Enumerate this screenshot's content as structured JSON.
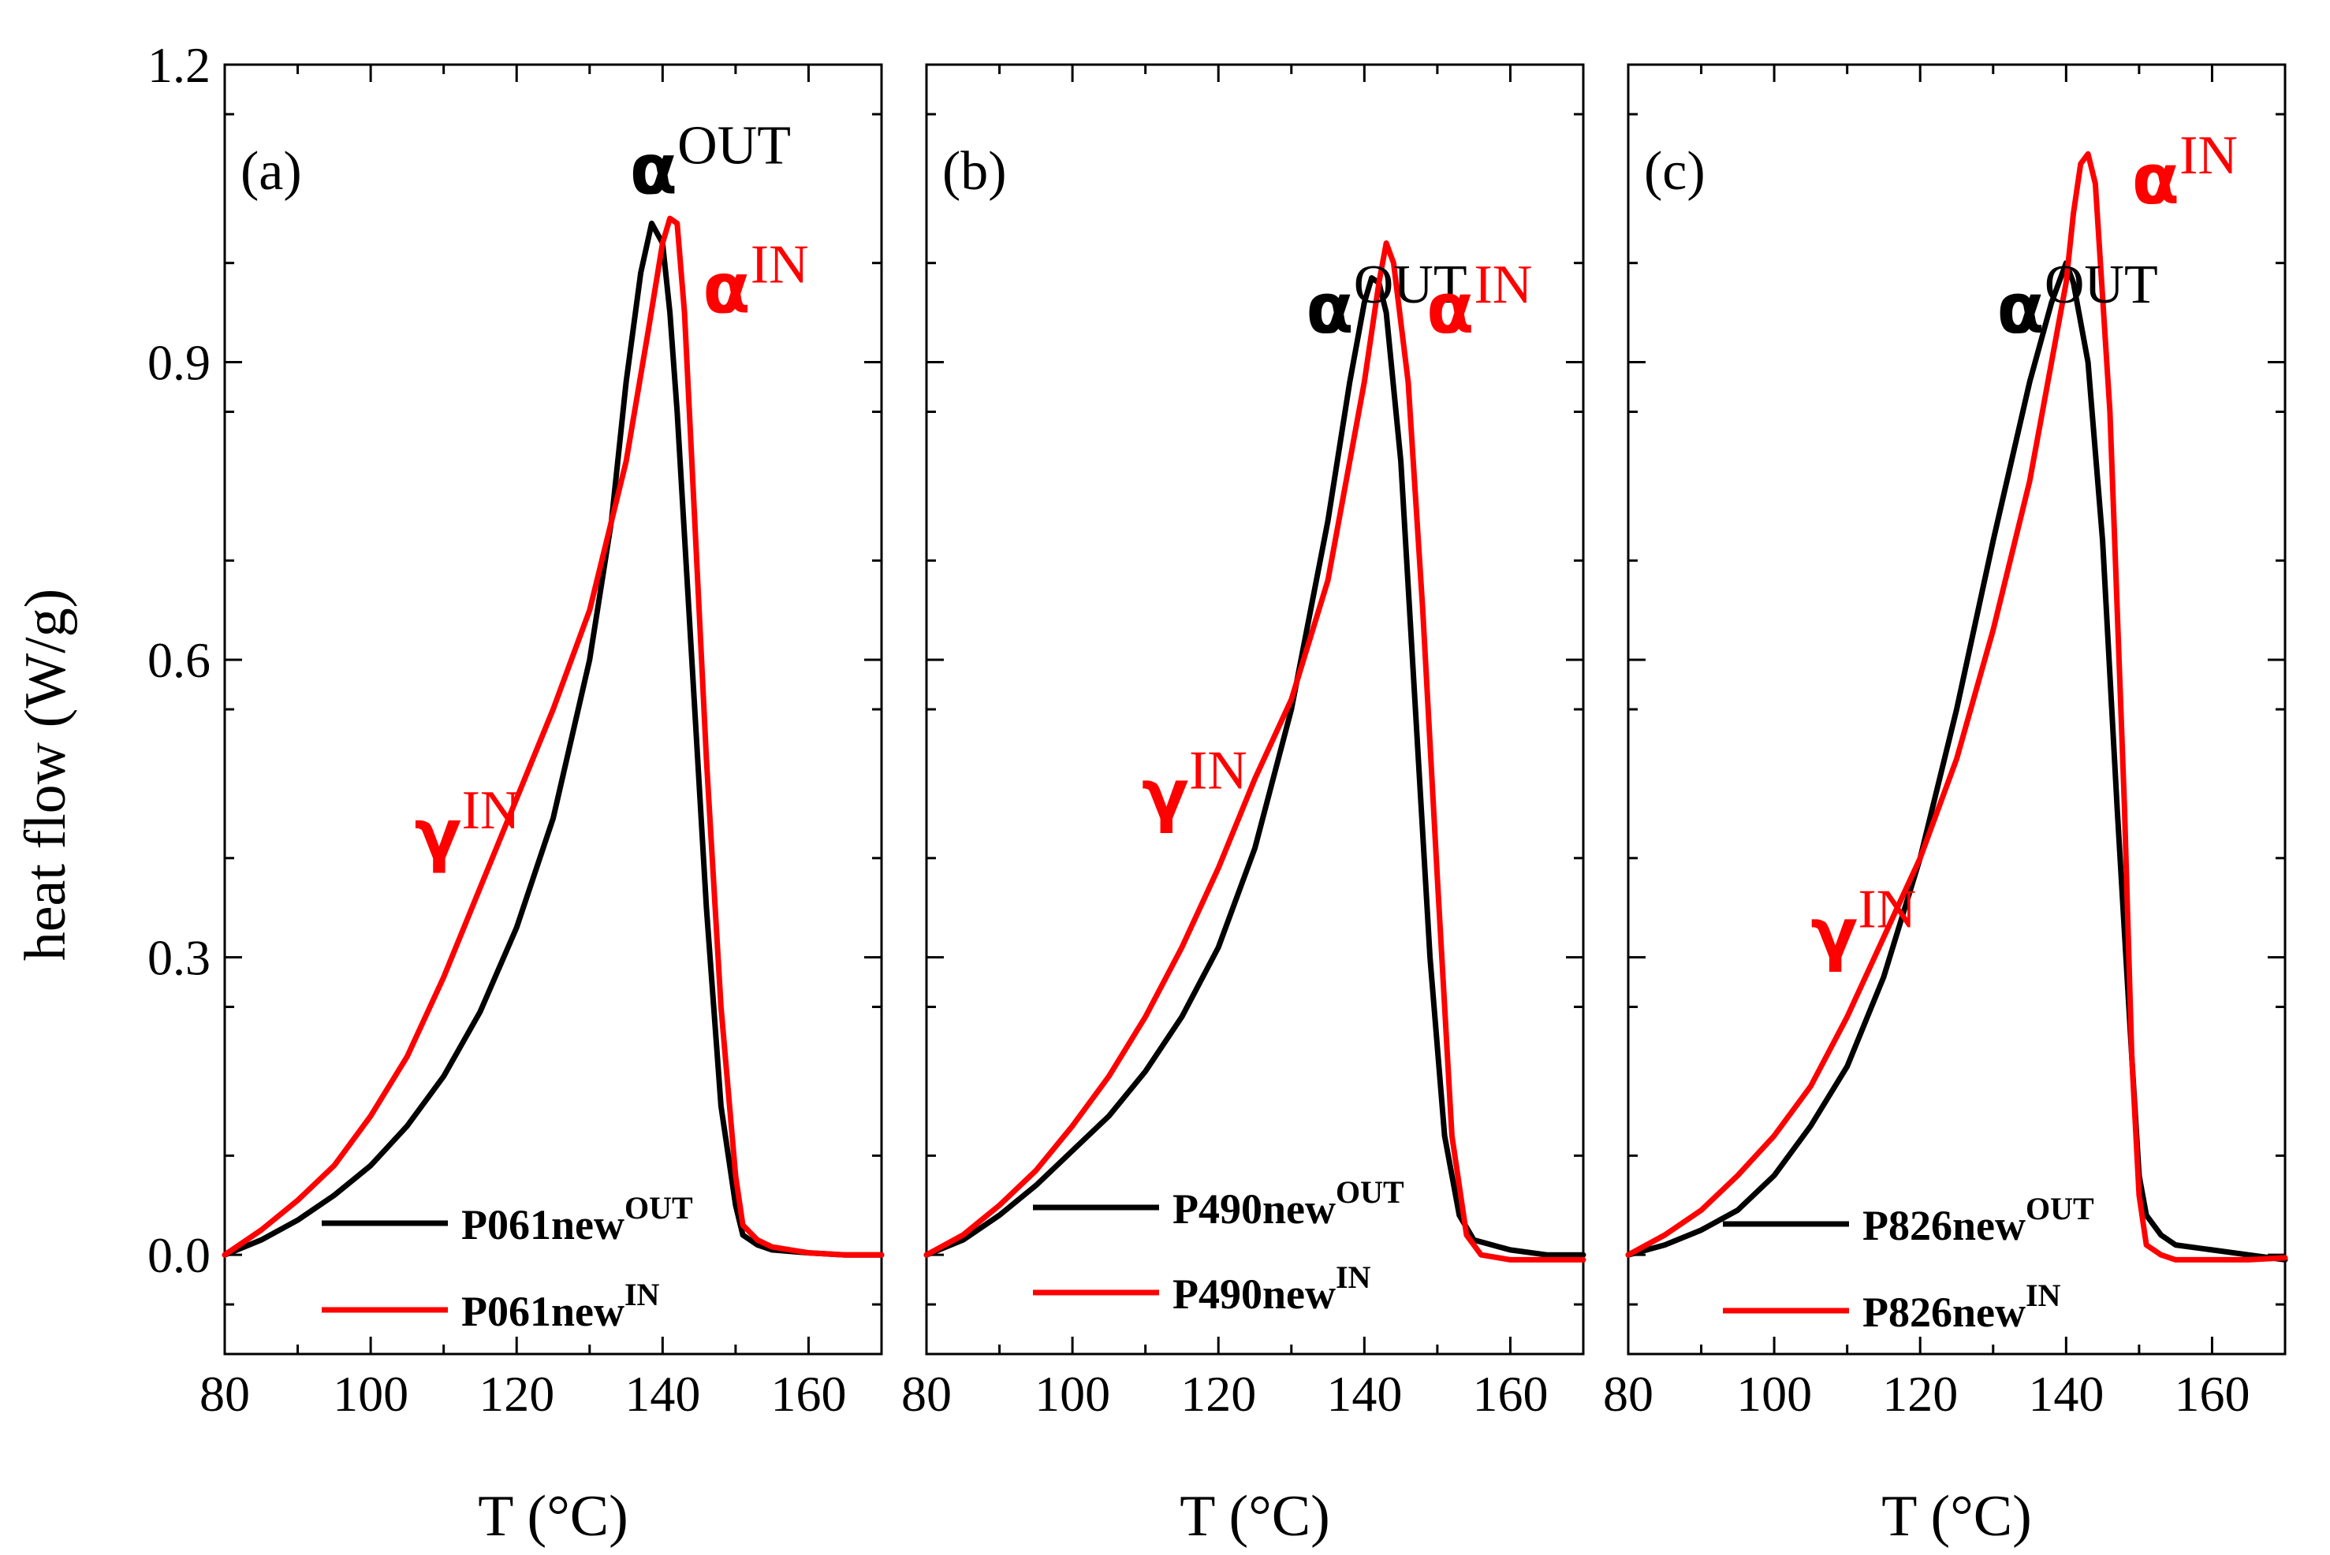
{
  "figure": {
    "ylabel": "heat flow (W/g)",
    "xlabel": "T (°C)"
  },
  "chart_data": [
    {
      "type": "line",
      "panel_label": "(a)",
      "xlabel": "T (°C)",
      "ylabel": "heat flow (W/g)",
      "xlim": [
        80,
        170
      ],
      "ylim": [
        -0.1,
        1.2
      ],
      "xticks": [
        "80",
        "100",
        "120",
        "140",
        "160"
      ],
      "yticks": [
        "0.0",
        "0.3",
        "0.6",
        "0.9",
        "1.2"
      ],
      "legend": [
        {
          "prefix": "P061new",
          "sup": "OUT",
          "color": "#000000"
        },
        {
          "prefix": "P061new",
          "sup": "IN",
          "color": "#ff0000"
        }
      ],
      "annotations": [
        {
          "symbol": "α",
          "sup": "OUT",
          "color": "#000000",
          "x": 135.5,
          "y": 1.07
        },
        {
          "symbol": "α",
          "sup": "IN",
          "color": "#ff0000",
          "x": 145.5,
          "y": 0.95
        },
        {
          "symbol": "γ",
          "sup": "IN",
          "color": "#ff0000",
          "x": 106,
          "y": 0.4
        }
      ],
      "series": [
        {
          "name": "P061new OUT",
          "color": "#000000",
          "x": [
            80,
            85,
            90,
            95,
            100,
            105,
            110,
            115,
            120,
            125,
            130,
            133,
            135,
            137,
            138.5,
            140,
            141,
            142,
            144,
            146,
            148,
            150,
            151,
            153,
            155,
            160,
            165,
            170
          ],
          "y": [
            0.0,
            0.015,
            0.035,
            0.06,
            0.09,
            0.13,
            0.18,
            0.245,
            0.33,
            0.44,
            0.6,
            0.74,
            0.88,
            0.99,
            1.04,
            1.02,
            0.95,
            0.85,
            0.6,
            0.35,
            0.15,
            0.05,
            0.02,
            0.01,
            0.005,
            0.002,
            0.0,
            0.0
          ]
        },
        {
          "name": "P061new IN",
          "color": "#ff0000",
          "x": [
            80,
            85,
            90,
            95,
            100,
            105,
            110,
            115,
            120,
            125,
            130,
            135,
            138,
            140,
            141,
            142,
            143,
            144,
            146,
            148,
            150,
            151,
            153,
            155,
            160,
            165,
            170
          ],
          "y": [
            0.0,
            0.025,
            0.055,
            0.09,
            0.14,
            0.2,
            0.28,
            0.37,
            0.46,
            0.55,
            0.65,
            0.8,
            0.93,
            1.02,
            1.045,
            1.04,
            0.95,
            0.8,
            0.5,
            0.25,
            0.08,
            0.03,
            0.015,
            0.008,
            0.002,
            0.0,
            0.0
          ]
        }
      ]
    },
    {
      "type": "line",
      "panel_label": "(b)",
      "xlabel": "T (°C)",
      "ylabel": "heat flow (W/g)",
      "xlim": [
        80,
        170
      ],
      "ylim": [
        -0.1,
        1.2
      ],
      "xticks": [
        "80",
        "100",
        "120",
        "140",
        "160"
      ],
      "yticks": [
        "0.0",
        "0.3",
        "0.6",
        "0.9",
        "1.2"
      ],
      "legend": [
        {
          "prefix": "P490new",
          "sup": "OUT",
          "color": "#000000"
        },
        {
          "prefix": "P490new",
          "sup": "IN",
          "color": "#ff0000"
        }
      ],
      "annotations": [
        {
          "symbol": "α",
          "sup": "OUT",
          "color": "#000000",
          "x": 132,
          "y": 0.93
        },
        {
          "symbol": "α",
          "sup": "IN",
          "color": "#ff0000",
          "x": 148.5,
          "y": 0.93
        },
        {
          "symbol": "γ",
          "sup": "IN",
          "color": "#ff0000",
          "x": 109.5,
          "y": 0.44
        }
      ],
      "series": [
        {
          "name": "P490new OUT",
          "color": "#000000",
          "x": [
            80,
            85,
            90,
            95,
            100,
            105,
            110,
            115,
            120,
            125,
            130,
            135,
            138,
            140,
            141,
            142,
            143,
            145,
            147,
            149,
            151,
            153,
            155,
            160,
            165,
            170
          ],
          "y": [
            0.0,
            0.015,
            0.04,
            0.07,
            0.105,
            0.14,
            0.185,
            0.24,
            0.31,
            0.41,
            0.55,
            0.74,
            0.88,
            0.96,
            0.985,
            0.98,
            0.95,
            0.8,
            0.55,
            0.3,
            0.12,
            0.04,
            0.015,
            0.005,
            0.0,
            0.0
          ]
        },
        {
          "name": "P490new IN",
          "color": "#ff0000",
          "x": [
            80,
            85,
            90,
            95,
            100,
            105,
            110,
            115,
            120,
            125,
            130,
            135,
            140,
            142,
            143,
            144,
            146,
            148,
            150,
            152,
            154,
            156,
            160,
            165,
            170
          ],
          "y": [
            0.0,
            0.02,
            0.05,
            0.085,
            0.13,
            0.18,
            0.24,
            0.31,
            0.39,
            0.48,
            0.56,
            0.68,
            0.88,
            0.98,
            1.02,
            1.0,
            0.88,
            0.65,
            0.38,
            0.12,
            0.02,
            0.0,
            -0.005,
            -0.005,
            -0.005
          ]
        }
      ]
    },
    {
      "type": "line",
      "panel_label": "(c)",
      "xlabel": "T (°C)",
      "ylabel": "heat flow (W/g)",
      "xlim": [
        80,
        170
      ],
      "ylim": [
        -0.1,
        1.2
      ],
      "xticks": [
        "80",
        "100",
        "120",
        "140",
        "160"
      ],
      "yticks": [
        "0.0",
        "0.3",
        "0.6",
        "0.9",
        "1.2"
      ],
      "legend": [
        {
          "prefix": "P826new",
          "sup": "OUT",
          "color": "#000000"
        },
        {
          "prefix": "P826new",
          "sup": "IN",
          "color": "#ff0000"
        }
      ],
      "annotations": [
        {
          "symbol": "α",
          "sup": "OUT",
          "color": "#000000",
          "x": 130.5,
          "y": 0.93
        },
        {
          "symbol": "α",
          "sup": "IN",
          "color": "#ff0000",
          "x": 149,
          "y": 1.06
        },
        {
          "symbol": "γ",
          "sup": "IN",
          "color": "#ff0000",
          "x": 105,
          "y": 0.3
        }
      ],
      "series": [
        {
          "name": "P826new OUT",
          "color": "#000000",
          "x": [
            80,
            85,
            90,
            95,
            100,
            105,
            110,
            115,
            120,
            125,
            130,
            135,
            138,
            140,
            141,
            143,
            145,
            147,
            149,
            150,
            151,
            153,
            155,
            160,
            165,
            170
          ],
          "y": [
            0.0,
            0.01,
            0.025,
            0.045,
            0.08,
            0.13,
            0.19,
            0.28,
            0.4,
            0.55,
            0.72,
            0.88,
            0.96,
            1.0,
            0.98,
            0.9,
            0.72,
            0.45,
            0.2,
            0.08,
            0.04,
            0.02,
            0.01,
            0.005,
            0.0,
            -0.005
          ]
        },
        {
          "name": "P826new IN",
          "color": "#ff0000",
          "x": [
            80,
            85,
            90,
            95,
            100,
            105,
            110,
            115,
            120,
            125,
            130,
            135,
            140,
            141,
            142,
            143,
            144,
            146,
            148,
            149,
            150,
            151,
            153,
            155,
            160,
            165,
            170
          ],
          "y": [
            0.0,
            0.02,
            0.045,
            0.08,
            0.12,
            0.17,
            0.24,
            0.32,
            0.4,
            0.5,
            0.63,
            0.78,
            0.98,
            1.05,
            1.1,
            1.11,
            1.08,
            0.85,
            0.45,
            0.2,
            0.06,
            0.01,
            0.0,
            -0.005,
            -0.005,
            -0.005,
            -0.003
          ]
        }
      ]
    }
  ]
}
